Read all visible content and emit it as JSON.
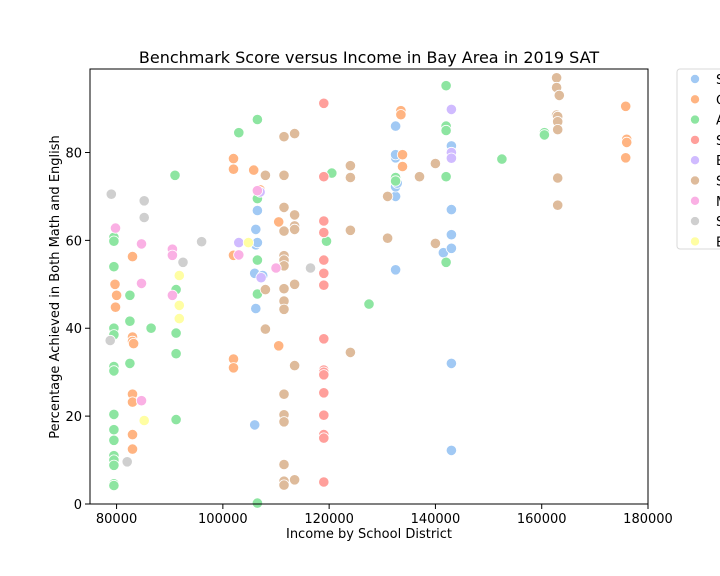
{
  "chart_data": {
    "type": "scatter",
    "title": "Benchmark Score versus Income in Bay Area in 2019 SAT",
    "xlabel": "Income by School District",
    "ylabel": "Percentage Achieved in Both Math and English",
    "xlim": [
      75000,
      180000
    ],
    "ylim": [
      0,
      99
    ],
    "xticks": [
      80000,
      100000,
      120000,
      140000,
      160000,
      180000
    ],
    "yticks": [
      0,
      20,
      40,
      60,
      80
    ],
    "grid": false,
    "legend_position": "outside-right",
    "series": [
      {
        "name": "S",
        "color": "#a1c9f4",
        "points": [
          [
            106000,
            18
          ],
          [
            106200,
            44.5
          ],
          [
            106000,
            52.5
          ],
          [
            107500,
            52
          ],
          [
            106200,
            59
          ],
          [
            106500,
            59.5
          ],
          [
            106200,
            62.5
          ],
          [
            106500,
            66.8
          ],
          [
            132500,
            53.3
          ],
          [
            132500,
            70
          ],
          [
            132500,
            72.2
          ],
          [
            132800,
            73
          ],
          [
            132500,
            78.8
          ],
          [
            132500,
            79.5
          ],
          [
            132500,
            86
          ],
          [
            141500,
            57.2
          ],
          [
            143000,
            58.2
          ],
          [
            143000,
            61.3
          ],
          [
            143000,
            67
          ],
          [
            143000,
            80.5
          ],
          [
            143000,
            81.5
          ],
          [
            143000,
            32
          ],
          [
            143000,
            12.2
          ]
        ]
      },
      {
        "name": "C",
        "color": "#ffb482",
        "points": [
          [
            79700,
            50
          ],
          [
            80000,
            47.5
          ],
          [
            79800,
            44.8
          ],
          [
            83000,
            56.3
          ],
          [
            83000,
            38
          ],
          [
            83000,
            37
          ],
          [
            83200,
            36.5
          ],
          [
            83000,
            25
          ],
          [
            83000,
            23.2
          ],
          [
            83000,
            15.8
          ],
          [
            83000,
            12.5
          ],
          [
            102000,
            78.6
          ],
          [
            102000,
            76.2
          ],
          [
            102000,
            56.6
          ],
          [
            102000,
            33
          ],
          [
            102000,
            31
          ],
          [
            105800,
            76
          ],
          [
            107000,
            71.5
          ],
          [
            110500,
            64.2
          ],
          [
            110500,
            36
          ],
          [
            133500,
            89.5
          ],
          [
            133500,
            88.6
          ],
          [
            133800,
            79.5
          ],
          [
            133800,
            76.8
          ],
          [
            175800,
            90.5
          ],
          [
            176000,
            83
          ],
          [
            176000,
            82.3
          ],
          [
            175800,
            78.8
          ]
        ]
      },
      {
        "name": "A",
        "color": "#8de5a1",
        "points": [
          [
            79500,
            60.7
          ],
          [
            79500,
            59.8
          ],
          [
            79500,
            54
          ],
          [
            79500,
            40
          ],
          [
            79500,
            38.5
          ],
          [
            79500,
            31.3
          ],
          [
            79500,
            30.3
          ],
          [
            79500,
            20.4
          ],
          [
            79500,
            16.9
          ],
          [
            79500,
            14.5
          ],
          [
            79500,
            11
          ],
          [
            79500,
            10
          ],
          [
            79500,
            8.8
          ],
          [
            79500,
            4.6
          ],
          [
            79500,
            4.2
          ],
          [
            82500,
            47.5
          ],
          [
            82500,
            41.6
          ],
          [
            82500,
            32
          ],
          [
            86500,
            40
          ],
          [
            91000,
            74.8
          ],
          [
            91200,
            48.8
          ],
          [
            91200,
            38.9
          ],
          [
            91200,
            34.2
          ],
          [
            91200,
            19.2
          ],
          [
            103000,
            84.5
          ],
          [
            106500,
            87.5
          ],
          [
            106500,
            69.5
          ],
          [
            106500,
            55.5
          ],
          [
            106500,
            47.8
          ],
          [
            106500,
            0.2
          ],
          [
            119500,
            59.8
          ],
          [
            120500,
            75.3
          ],
          [
            127500,
            45.5
          ],
          [
            132500,
            74.3
          ],
          [
            132500,
            73.5
          ],
          [
            142000,
            95.2
          ],
          [
            142000,
            86
          ],
          [
            142000,
            85
          ],
          [
            142000,
            74.5
          ],
          [
            142000,
            55
          ],
          [
            152500,
            78.5
          ],
          [
            160500,
            84.5
          ],
          [
            160500,
            84
          ]
        ]
      },
      {
        "name": "S",
        "color": "#ff9f9b",
        "points": [
          [
            119000,
            91.2
          ],
          [
            119000,
            74.5
          ],
          [
            119000,
            64.4
          ],
          [
            119000,
            61.8
          ],
          [
            119000,
            55.5
          ],
          [
            119000,
            52.5
          ],
          [
            119000,
            49.8
          ],
          [
            119000,
            37.6
          ],
          [
            119000,
            30.5
          ],
          [
            119000,
            30
          ],
          [
            119000,
            29.4
          ],
          [
            119000,
            25.3
          ],
          [
            119000,
            20.2
          ],
          [
            119000,
            15.8
          ],
          [
            119000,
            15
          ],
          [
            119000,
            5
          ]
        ]
      },
      {
        "name": "E",
        "color": "#d0bbff",
        "points": [
          [
            107000,
            71
          ],
          [
            107200,
            51.5
          ],
          [
            103000,
            59.5
          ],
          [
            143000,
            89.8
          ],
          [
            143000,
            80
          ],
          [
            143000,
            78.7
          ]
        ]
      },
      {
        "name": "S",
        "color": "#debb9b",
        "points": [
          [
            108000,
            74.8
          ],
          [
            108000,
            48.8
          ],
          [
            108000,
            39.8
          ],
          [
            111500,
            83.6
          ],
          [
            111500,
            74.8
          ],
          [
            111500,
            67.5
          ],
          [
            111500,
            62.1
          ],
          [
            111500,
            56.5
          ],
          [
            111500,
            55.5
          ],
          [
            111500,
            54.2
          ],
          [
            111500,
            49
          ],
          [
            111500,
            46.2
          ],
          [
            111500,
            44.3
          ],
          [
            111500,
            25
          ],
          [
            111500,
            20.3
          ],
          [
            111500,
            18.7
          ],
          [
            111500,
            9
          ],
          [
            111500,
            5.2
          ],
          [
            111500,
            4.3
          ],
          [
            113500,
            84.3
          ],
          [
            113500,
            65.8
          ],
          [
            113500,
            63.3
          ],
          [
            113500,
            62.5
          ],
          [
            113500,
            50
          ],
          [
            113500,
            31.5
          ],
          [
            113500,
            5.5
          ],
          [
            124000,
            77
          ],
          [
            124000,
            74.3
          ],
          [
            124000,
            62.3
          ],
          [
            124000,
            34.5
          ],
          [
            131000,
            70
          ],
          [
            131000,
            60.5
          ],
          [
            137000,
            74.5
          ],
          [
            140000,
            77.5
          ],
          [
            140000,
            59.3
          ],
          [
            162800,
            97
          ],
          [
            162800,
            94.8
          ],
          [
            163300,
            93
          ],
          [
            162800,
            88.5
          ],
          [
            163000,
            88.2
          ],
          [
            163000,
            87
          ],
          [
            163000,
            85.2
          ],
          [
            163000,
            74.2
          ],
          [
            163000,
            68
          ]
        ]
      },
      {
        "name": "M",
        "color": "#fab0e4",
        "points": [
          [
            79800,
            62.8
          ],
          [
            84700,
            59.2
          ],
          [
            84700,
            50.2
          ],
          [
            84700,
            23.5
          ],
          [
            90500,
            58
          ],
          [
            90500,
            56.6
          ],
          [
            90500,
            47.5
          ],
          [
            106500,
            71.3
          ],
          [
            110000,
            53.7
          ],
          [
            103000,
            56.7
          ]
        ]
      },
      {
        "name": "S",
        "color": "#cfcfcf",
        "points": [
          [
            79000,
            70.5
          ],
          [
            78800,
            37.2
          ],
          [
            85200,
            69
          ],
          [
            85200,
            65.2
          ],
          [
            92500,
            55
          ],
          [
            96000,
            59.7
          ],
          [
            116500,
            53.7
          ],
          [
            82000,
            9.6
          ]
        ]
      },
      {
        "name": "E",
        "color": "#fffea3",
        "points": [
          [
            85200,
            19
          ],
          [
            91800,
            52
          ],
          [
            91800,
            45.2
          ],
          [
            91800,
            42.2
          ],
          [
            104800,
            59.5
          ]
        ]
      }
    ]
  }
}
